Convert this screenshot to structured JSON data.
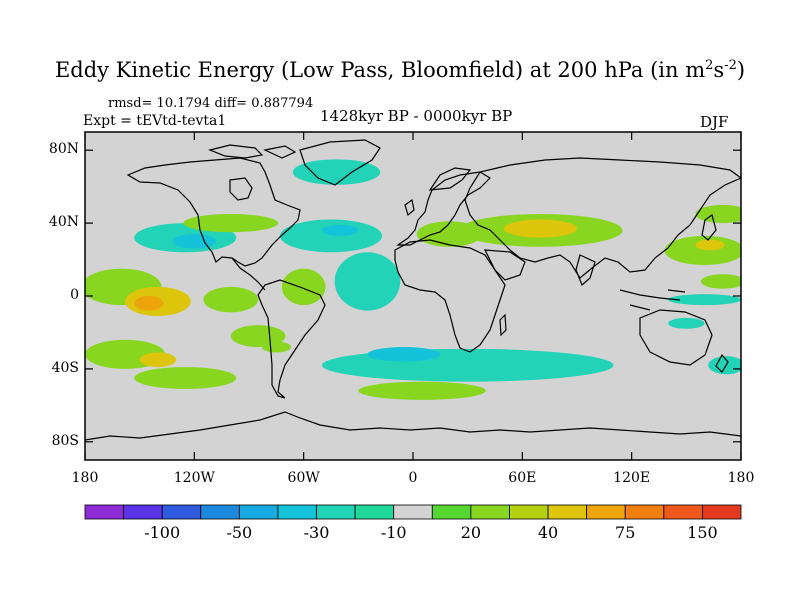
{
  "title": {
    "text": "Eddy Kinetic Energy (Low Pass, Bloomfield) at 200 hPa (in m",
    "sup1": "2",
    "mid": "s",
    "sup2": "-2",
    "end": ")"
  },
  "stats": "rmsd= 10.1794 diff= 0.887794",
  "experiment": "Expt = tEVtd-tevta1",
  "period": "1428kyr BP - 0000kyr BP",
  "season": "DJF",
  "colors": {
    "land_background": "#d3d3d3",
    "coastline": "#000000"
  },
  "chart_data": {
    "type": "heatmap",
    "projection": "cylindrical equidistant",
    "xlim": [
      -180,
      180
    ],
    "ylim": [
      -90,
      90
    ],
    "x_tick_labels": [
      "180",
      "120W",
      "60W",
      "0",
      "60E",
      "120E",
      "180"
    ],
    "y_tick_labels": [
      "80N",
      "40N",
      "0",
      "40S",
      "80S"
    ],
    "colorbar": {
      "levels": [
        -150,
        -100,
        -75,
        -50,
        -40,
        -30,
        -20,
        -10,
        10,
        20,
        30,
        40,
        50,
        75,
        100,
        150
      ],
      "labels": [
        "-100",
        "-50",
        "-30",
        "-10",
        "20",
        "40",
        "75",
        "150"
      ],
      "colors": [
        "#8e2ad6",
        "#5a35e8",
        "#2e5ae0",
        "#1e8adf",
        "#18a9e0",
        "#14c3d9",
        "#22d3b8",
        "#20d899",
        "#d3d3d3",
        "#55d631",
        "#88d620",
        "#b4d111",
        "#dcc50a",
        "#eca40b",
        "#f07f12",
        "#ee581c",
        "#e33a1e"
      ]
    },
    "regions": [
      {
        "lon": -160,
        "lat": 5,
        "rx": 22,
        "ry": 10,
        "value": 25
      },
      {
        "lon": -140,
        "lat": -3,
        "rx": 18,
        "ry": 8,
        "value": 45
      },
      {
        "lon": -145,
        "lat": -4,
        "rx": 8,
        "ry": 4,
        "value": 70
      },
      {
        "lon": -158,
        "lat": -32,
        "rx": 22,
        "ry": 8,
        "value": 25
      },
      {
        "lon": -140,
        "lat": -35,
        "rx": 10,
        "ry": 4,
        "value": 45
      },
      {
        "lon": -125,
        "lat": -45,
        "rx": 28,
        "ry": 6,
        "value": 25
      },
      {
        "lon": -100,
        "lat": -2,
        "rx": 15,
        "ry": 7,
        "value": 25
      },
      {
        "lon": -85,
        "lat": -22,
        "rx": 15,
        "ry": 6,
        "value": 25
      },
      {
        "lon": -75,
        "lat": -28,
        "rx": 8,
        "ry": 3,
        "value": 25
      },
      {
        "lon": -60,
        "lat": 5,
        "rx": 12,
        "ry": 10,
        "value": 25
      },
      {
        "lon": -125,
        "lat": 32,
        "rx": 28,
        "ry": 8,
        "value": -25
      },
      {
        "lon": -120,
        "lat": 30,
        "rx": 12,
        "ry": 4,
        "value": -35
      },
      {
        "lon": -45,
        "lat": 33,
        "rx": 28,
        "ry": 9,
        "value": -25
      },
      {
        "lon": -40,
        "lat": 36,
        "rx": 10,
        "ry": 3,
        "value": -35
      },
      {
        "lon": -25,
        "lat": 8,
        "rx": 18,
        "ry": 16,
        "value": -25
      },
      {
        "lon": -42,
        "lat": 68,
        "rx": 24,
        "ry": 7,
        "value": -25
      },
      {
        "lon": -100,
        "lat": 40,
        "rx": 26,
        "ry": 5,
        "value": 25
      },
      {
        "lon": 30,
        "lat": -38,
        "rx": 80,
        "ry": 9,
        "value": -25
      },
      {
        "lon": -5,
        "lat": -32,
        "rx": 20,
        "ry": 4,
        "value": -35
      },
      {
        "lon": 5,
        "lat": -52,
        "rx": 35,
        "ry": 5,
        "value": 25
      },
      {
        "lon": 70,
        "lat": 36,
        "rx": 45,
        "ry": 9,
        "value": 25
      },
      {
        "lon": 70,
        "lat": 37,
        "rx": 20,
        "ry": 5,
        "value": 45
      },
      {
        "lon": 20,
        "lat": 34,
        "rx": 18,
        "ry": 7,
        "value": 25
      },
      {
        "lon": 160,
        "lat": 25,
        "rx": 22,
        "ry": 8,
        "value": 25
      },
      {
        "lon": 163,
        "lat": 28,
        "rx": 8,
        "ry": 3,
        "value": 45
      },
      {
        "lon": 170,
        "lat": 45,
        "rx": 15,
        "ry": 5,
        "value": 25
      },
      {
        "lon": 170,
        "lat": 8,
        "rx": 12,
        "ry": 4,
        "value": 25
      },
      {
        "lon": 160,
        "lat": -2,
        "rx": 20,
        "ry": 3,
        "value": -25
      },
      {
        "lon": 150,
        "lat": -15,
        "rx": 10,
        "ry": 3,
        "value": -25
      },
      {
        "lon": 172,
        "lat": -38,
        "rx": 10,
        "ry": 5,
        "value": -25
      }
    ]
  }
}
